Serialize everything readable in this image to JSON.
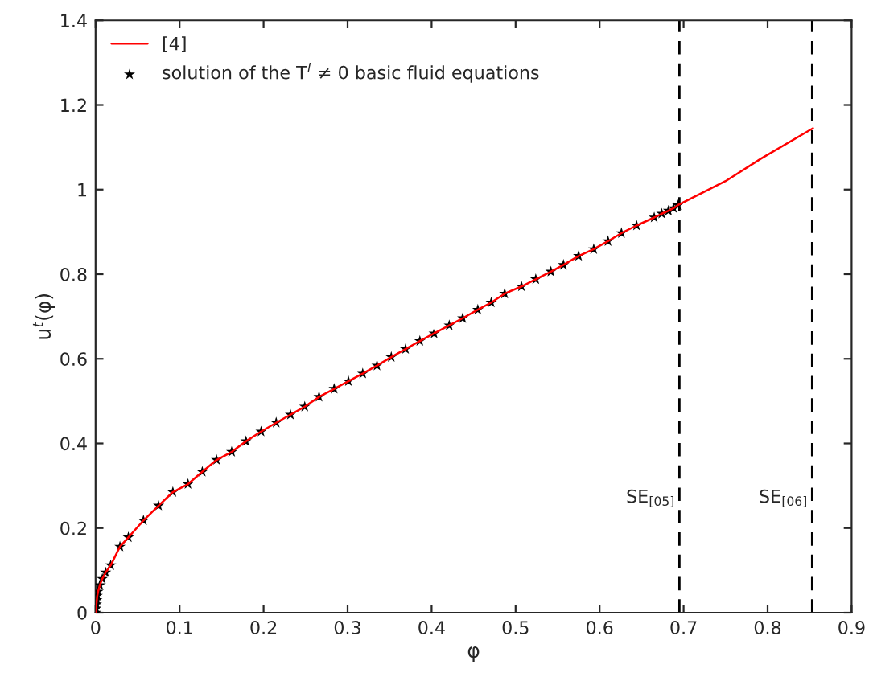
{
  "chart_data": {
    "type": "line",
    "xlabel": "φ",
    "ylabel": "u$^{t}$(φ)",
    "xlim": [
      0,
      0.9
    ],
    "ylim": [
      0,
      1.4
    ],
    "xticks": [
      0,
      0.1,
      0.2,
      0.3,
      0.4,
      0.5,
      0.6,
      0.7,
      0.8,
      0.9
    ],
    "yticks": [
      0,
      0.2,
      0.4,
      0.6,
      0.8,
      1,
      1.2,
      1.4
    ],
    "grid": false,
    "legend": "top left",
    "series": [
      {
        "name": "[4]",
        "color": "#ff0000",
        "line_style": "solid",
        "marker": "none",
        "x": [
          0,
          0.0005,
          0.001,
          0.0015,
          0.002,
          0.003,
          0.005,
          0.008,
          0.012,
          0.018,
          0.029,
          0.039,
          0.057,
          0.075,
          0.092,
          0.11,
          0.127,
          0.144,
          0.162,
          0.179,
          0.197,
          0.215,
          0.232,
          0.249,
          0.266,
          0.284,
          0.301,
          0.318,
          0.335,
          0.352,
          0.369,
          0.386,
          0.403,
          0.421,
          0.437,
          0.455,
          0.471,
          0.487,
          0.507,
          0.524,
          0.542,
          0.557,
          0.575,
          0.593,
          0.61,
          0.626,
          0.644,
          0.665,
          0.674,
          0.682,
          0.688,
          0.693,
          0.75,
          0.792,
          0.854
        ],
        "values": [
          0,
          0.01,
          0.02,
          0.03,
          0.04,
          0.05,
          0.065,
          0.08,
          0.095,
          0.112,
          0.156,
          0.178,
          0.218,
          0.253,
          0.285,
          0.304,
          0.333,
          0.361,
          0.38,
          0.405,
          0.428,
          0.449,
          0.468,
          0.487,
          0.51,
          0.529,
          0.547,
          0.565,
          0.584,
          0.604,
          0.623,
          0.642,
          0.66,
          0.679,
          0.696,
          0.716,
          0.733,
          0.754,
          0.771,
          0.788,
          0.806,
          0.822,
          0.843,
          0.859,
          0.878,
          0.897,
          0.915,
          0.934,
          0.943,
          0.95,
          0.956,
          0.963,
          1.02,
          1.073,
          1.145
        ]
      },
      {
        "name": "solution of the T$^{l}$ ≠ 0 basic fluid equations",
        "type": "scatter",
        "color": "#000000",
        "marker": "star",
        "x": [
          0,
          0.0005,
          0.001,
          0.0015,
          0.002,
          0.003,
          0.005,
          0.008,
          0.012,
          0.018,
          0.029,
          0.039,
          0.057,
          0.075,
          0.092,
          0.11,
          0.127,
          0.144,
          0.162,
          0.179,
          0.197,
          0.215,
          0.232,
          0.249,
          0.266,
          0.284,
          0.301,
          0.318,
          0.335,
          0.352,
          0.369,
          0.386,
          0.403,
          0.421,
          0.437,
          0.455,
          0.471,
          0.487,
          0.507,
          0.524,
          0.542,
          0.557,
          0.575,
          0.593,
          0.61,
          0.626,
          0.644,
          0.665,
          0.674,
          0.682,
          0.688,
          0.693
        ],
        "values": [
          0,
          0.01,
          0.02,
          0.03,
          0.04,
          0.05,
          0.065,
          0.08,
          0.095,
          0.112,
          0.156,
          0.178,
          0.218,
          0.253,
          0.285,
          0.304,
          0.333,
          0.361,
          0.38,
          0.405,
          0.428,
          0.449,
          0.468,
          0.487,
          0.51,
          0.529,
          0.547,
          0.565,
          0.584,
          0.604,
          0.623,
          0.642,
          0.66,
          0.679,
          0.696,
          0.716,
          0.733,
          0.754,
          0.771,
          0.788,
          0.806,
          0.822,
          0.843,
          0.859,
          0.878,
          0.897,
          0.915,
          0.934,
          0.943,
          0.95,
          0.956,
          0.963
        ]
      }
    ],
    "ref_lines": [
      {
        "axis": "x",
        "value": 0.695,
        "label": "SE$_{[05]}$",
        "color": "#000000",
        "line_style": "dashed"
      },
      {
        "axis": "x",
        "value": 0.853,
        "label": "SE$_{[06]}$",
        "color": "#000000",
        "line_style": "dashed"
      }
    ]
  }
}
